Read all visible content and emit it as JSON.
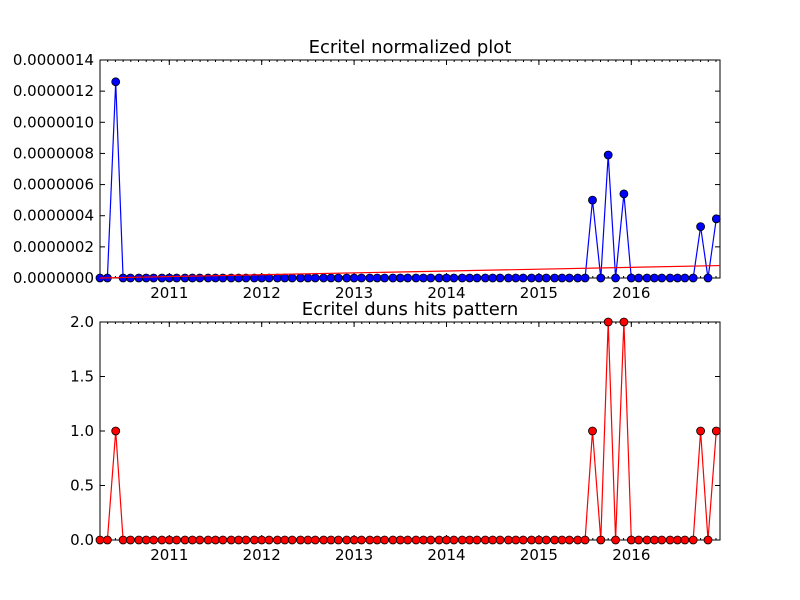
{
  "chart_data": [
    {
      "type": "line",
      "title": "Ecritel normalized plot",
      "xlabel": "",
      "ylabel": "",
      "xlim": [
        2010.25,
        2016.96
      ],
      "ylim": [
        0,
        1.4e-06
      ],
      "x_ticks": [
        "2011",
        "2012",
        "2013",
        "2014",
        "2015",
        "2016"
      ],
      "y_ticks": [
        "0.0000000",
        "0.0000002",
        "0.0000004",
        "0.0000006",
        "0.0000008",
        "0.0000010",
        "0.0000012",
        "0.0000014"
      ],
      "grid": false,
      "x": [
        2010.25,
        2010.33,
        2010.42,
        2010.5,
        2010.58,
        2010.67,
        2010.75,
        2010.83,
        2010.92,
        2011.0,
        2011.08,
        2011.17,
        2011.25,
        2011.33,
        2011.42,
        2011.5,
        2011.58,
        2011.67,
        2011.75,
        2011.83,
        2011.92,
        2012.0,
        2012.08,
        2012.17,
        2012.25,
        2012.33,
        2012.42,
        2012.5,
        2012.58,
        2012.67,
        2012.75,
        2012.83,
        2012.92,
        2013.0,
        2013.08,
        2013.17,
        2013.25,
        2013.33,
        2013.42,
        2013.5,
        2013.58,
        2013.67,
        2013.75,
        2013.83,
        2013.92,
        2014.0,
        2014.08,
        2014.17,
        2014.25,
        2014.33,
        2014.42,
        2014.5,
        2014.58,
        2014.67,
        2014.75,
        2014.83,
        2014.92,
        2015.0,
        2015.08,
        2015.17,
        2015.25,
        2015.33,
        2015.42,
        2015.5,
        2015.58,
        2015.67,
        2015.75,
        2015.83,
        2015.92,
        2016.0,
        2016.08,
        2016.17,
        2016.25,
        2016.33,
        2016.42,
        2016.5,
        2016.58,
        2016.67,
        2016.75,
        2016.83,
        2016.92
      ],
      "series": [
        {
          "color": "#0000ff",
          "marker": "circle",
          "values": [
            0,
            0,
            1.26e-06,
            0,
            0,
            0,
            0,
            0,
            0,
            0,
            0,
            0,
            0,
            0,
            0,
            0,
            0,
            0,
            0,
            0,
            0,
            0,
            0,
            0,
            0,
            0,
            0,
            0,
            0,
            0,
            0,
            0,
            0,
            0,
            0,
            0,
            0,
            0,
            0,
            0,
            0,
            0,
            0,
            0,
            0,
            0,
            0,
            0,
            0,
            0,
            0,
            0,
            0,
            0,
            0,
            0,
            0,
            0,
            0,
            0,
            0,
            0,
            0,
            0,
            5e-07,
            0,
            7.9e-07,
            0,
            5.4e-07,
            0,
            0,
            0,
            0,
            0,
            0,
            0,
            0,
            0,
            3.3e-07,
            0,
            3.8e-07
          ]
        },
        {
          "color": "#ff0000",
          "marker": "none",
          "style": "trend",
          "x": [
            2010.25,
            2016.96
          ],
          "values": [
            0,
            8e-08
          ]
        }
      ]
    },
    {
      "type": "line",
      "title": "Ecritel duns hits pattern",
      "xlabel": "",
      "ylabel": "",
      "xlim": [
        2010.25,
        2016.96
      ],
      "ylim": [
        0,
        2.0
      ],
      "x_ticks": [
        "2011",
        "2012",
        "2013",
        "2014",
        "2015",
        "2016"
      ],
      "y_ticks": [
        "0.0",
        "0.5",
        "1.0",
        "1.5",
        "2.0"
      ],
      "grid": false,
      "series": [
        {
          "color": "#ff0000",
          "marker": "circle",
          "values": [
            0,
            0,
            1,
            0,
            0,
            0,
            0,
            0,
            0,
            0,
            0,
            0,
            0,
            0,
            0,
            0,
            0,
            0,
            0,
            0,
            0,
            0,
            0,
            0,
            0,
            0,
            0,
            0,
            0,
            0,
            0,
            0,
            0,
            0,
            0,
            0,
            0,
            0,
            0,
            0,
            0,
            0,
            0,
            0,
            0,
            0,
            0,
            0,
            0,
            0,
            0,
            0,
            0,
            0,
            0,
            0,
            0,
            0,
            0,
            0,
            0,
            0,
            0,
            0,
            1,
            0,
            2,
            0,
            2,
            0,
            0,
            0,
            0,
            0,
            0,
            0,
            0,
            0,
            1,
            0,
            1
          ]
        }
      ]
    }
  ]
}
